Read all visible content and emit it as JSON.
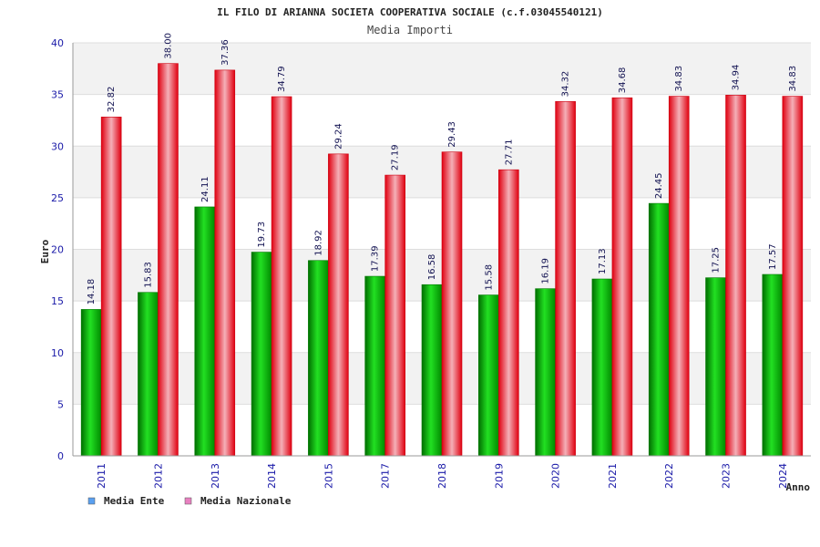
{
  "chart_data": {
    "type": "bar",
    "title": "IL FILO DI ARIANNA SOCIETA COOPERATIVA SOCIALE (c.f.03045540121)",
    "subtitle": "Media Importi",
    "xlabel": "Anno",
    "ylabel": "Euro",
    "ylim": [
      0,
      40
    ],
    "yticks": [
      0,
      5,
      10,
      15,
      20,
      25,
      30,
      35,
      40
    ],
    "grid": true,
    "legend_position": "bottom-left",
    "categories": [
      "2011",
      "2012",
      "2013",
      "2014",
      "2015",
      "2017",
      "2018",
      "2019",
      "2020",
      "2021",
      "2022",
      "2023",
      "2024"
    ],
    "series": [
      {
        "name": "Media Ente",
        "legend_color": "#5aa0f0",
        "bar_color": "#00b400",
        "values": [
          14.18,
          15.83,
          24.11,
          19.73,
          18.92,
          17.39,
          16.58,
          15.58,
          16.19,
          17.13,
          24.45,
          17.25,
          17.57
        ]
      },
      {
        "name": "Media Nazionale",
        "legend_color": "#e880c0",
        "bar_color": "#ee1122",
        "values": [
          32.82,
          38.0,
          37.36,
          34.79,
          29.24,
          27.19,
          29.43,
          27.71,
          34.32,
          34.68,
          34.83,
          34.94,
          34.83
        ]
      }
    ],
    "data_labels": [
      [
        "14.18",
        "15.83",
        "24.11",
        "19.73",
        "18.92",
        "17.39",
        "16.58",
        "15.58",
        "16.19",
        "17.13",
        "24.45",
        "17.25",
        "17.57"
      ],
      [
        "32.82",
        "38.00",
        "37.36",
        "34.79",
        "29.24",
        "27.19",
        "29.43",
        "27.71",
        "34.32",
        "34.68",
        "34.83",
        "34.94",
        "34.83"
      ]
    ]
  }
}
